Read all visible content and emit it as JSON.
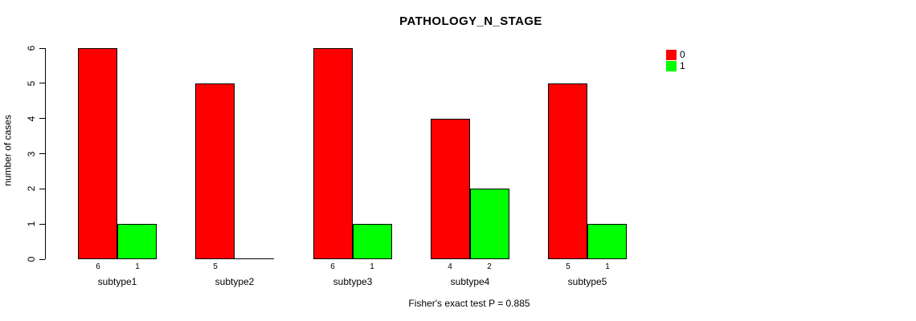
{
  "title": "PATHOLOGY_N_STAGE",
  "ylabel": "number of cases",
  "footer": "Fisher's exact test P = 0.885",
  "colors": {
    "series0": "#FF0000",
    "series1": "#00FF00",
    "axis": "#000000",
    "background": "#FFFFFF"
  },
  "legend": {
    "position": "top-right",
    "entries": [
      {
        "label": "0",
        "color": "#FF0000"
      },
      {
        "label": "1",
        "color": "#00FF00"
      }
    ]
  },
  "chart_data": {
    "type": "bar",
    "title": "PATHOLOGY_N_STAGE",
    "xlabel": "",
    "ylabel": "number of cases",
    "categories": [
      "subtype1",
      "subtype2",
      "subtype3",
      "subtype4",
      "subtype5"
    ],
    "series": [
      {
        "name": "0",
        "color": "#FF0000",
        "values": [
          6,
          5,
          6,
          4,
          5
        ]
      },
      {
        "name": "1",
        "color": "#00FF00",
        "values": [
          1,
          0,
          1,
          2,
          1
        ]
      }
    ],
    "bar_value_labels": [
      [
        "6",
        "1"
      ],
      [
        "5",
        ""
      ],
      [
        "6",
        "1"
      ],
      [
        "4",
        "2"
      ],
      [
        "5",
        "1"
      ]
    ],
    "ylim": [
      0,
      6
    ],
    "yticks": [
      0,
      1,
      2,
      3,
      4,
      5,
      6
    ],
    "grid": false,
    "legend_position": "top-right",
    "annotation": "Fisher's exact test P = 0.885"
  }
}
